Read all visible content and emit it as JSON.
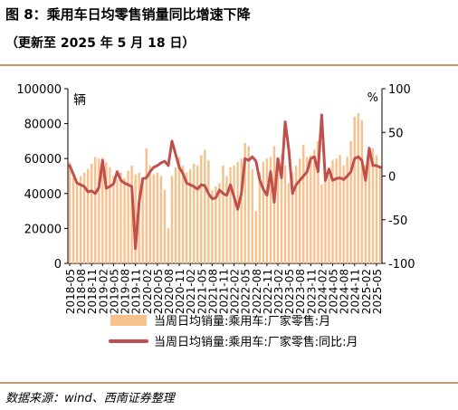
{
  "header": {
    "title": "图 8：乘用车日均零售销量同比增速下降",
    "subtitle": "（更新至 2025 年 5 月 18 日）"
  },
  "footer": {
    "source": "数据来源：wind、西南证券整理"
  },
  "chart_data": {
    "type": "bar+line",
    "left_axis": {
      "unit_label": "辆",
      "ylim": [
        0,
        100000
      ],
      "ticks": [
        0,
        20000,
        40000,
        60000,
        80000,
        100000
      ]
    },
    "right_axis": {
      "unit_label": "%",
      "ylim": [
        -100,
        100
      ],
      "ticks": [
        -100,
        -50,
        0,
        50,
        100
      ]
    },
    "x_tick_labels": [
      "2018-05",
      "2018-08",
      "2018-11",
      "2019-02",
      "2019-05",
      "2019-08",
      "2019-11",
      "2020-02",
      "2020-05",
      "2020-08",
      "2020-11",
      "2021-02",
      "2021-05",
      "2021-08",
      "2021-11",
      "2022-02",
      "2022-05",
      "2022-08",
      "2022-11",
      "2023-02",
      "2023-05",
      "2023-08",
      "2023-11",
      "2024-02",
      "2024-05",
      "2024-08",
      "2024-11",
      "2025-02",
      "2025-05"
    ],
    "x_tick_index": [
      0,
      3,
      6,
      9,
      12,
      15,
      18,
      21,
      24,
      27,
      30,
      33,
      36,
      39,
      42,
      45,
      48,
      51,
      54,
      57,
      60,
      63,
      66,
      69,
      72,
      75,
      78,
      81,
      84
    ],
    "n_periods": 86,
    "series": [
      {
        "name": "当周日均销量:乘用车:厂家零售:月",
        "type": "bar",
        "axis": "left",
        "color": "#f7c18e",
        "values": [
          58000,
          49000,
          46000,
          50000,
          52000,
          54000,
          57000,
          61000,
          60000,
          60500,
          58000,
          55000,
          50000,
          48000,
          52000,
          49000,
          53000,
          56000,
          51000,
          52000,
          48000,
          66000,
          56000,
          51000,
          52000,
          50000,
          42000,
          20000,
          50000,
          55000,
          61000,
          56000,
          52000,
          54000,
          57000,
          56000,
          62000,
          65000,
          59000,
          42000,
          44000,
          46000,
          56000,
          50000,
          55000,
          56000,
          58000,
          60000,
          69000,
          67000,
          54000,
          30000,
          52000,
          58000,
          60000,
          61000,
          67000,
          58000,
          62000,
          56000,
          46000,
          52000,
          56000,
          60000,
          68000,
          61000,
          62000,
          65000,
          70000,
          45000,
          47000,
          50000,
          59000,
          60000,
          62000,
          56000,
          61000,
          70000,
          84000,
          86000,
          82000,
          56000,
          64000,
          66000,
          62000,
          56000
        ]
      },
      {
        "name": "当周日均销量:乘用车:厂家零售:同比:月",
        "type": "line",
        "axis": "right",
        "color": "#c0504d",
        "values": [
          12,
          2,
          -8,
          -10,
          -12,
          -18,
          -17,
          -20,
          -13,
          18,
          -14,
          -12,
          -9,
          5,
          -5,
          -8,
          -10,
          -12,
          -83,
          -30,
          -3,
          -2,
          5,
          10,
          12,
          15,
          17,
          12,
          40,
          25,
          10,
          3,
          -8,
          -10,
          -12,
          -15,
          -10,
          -11,
          -20,
          -26,
          -25,
          -16,
          -20,
          -22,
          -10,
          -24,
          -38,
          -20,
          20,
          18,
          22,
          17,
          -4,
          -15,
          -22,
          5,
          -30,
          20,
          -2,
          62,
          30,
          -20,
          -10,
          -5,
          0,
          5,
          20,
          22,
          5,
          70,
          -5,
          8,
          -5,
          -3,
          -2,
          -4,
          0,
          5,
          20,
          22,
          18,
          -5,
          32,
          12,
          12,
          10
        ]
      }
    ]
  }
}
